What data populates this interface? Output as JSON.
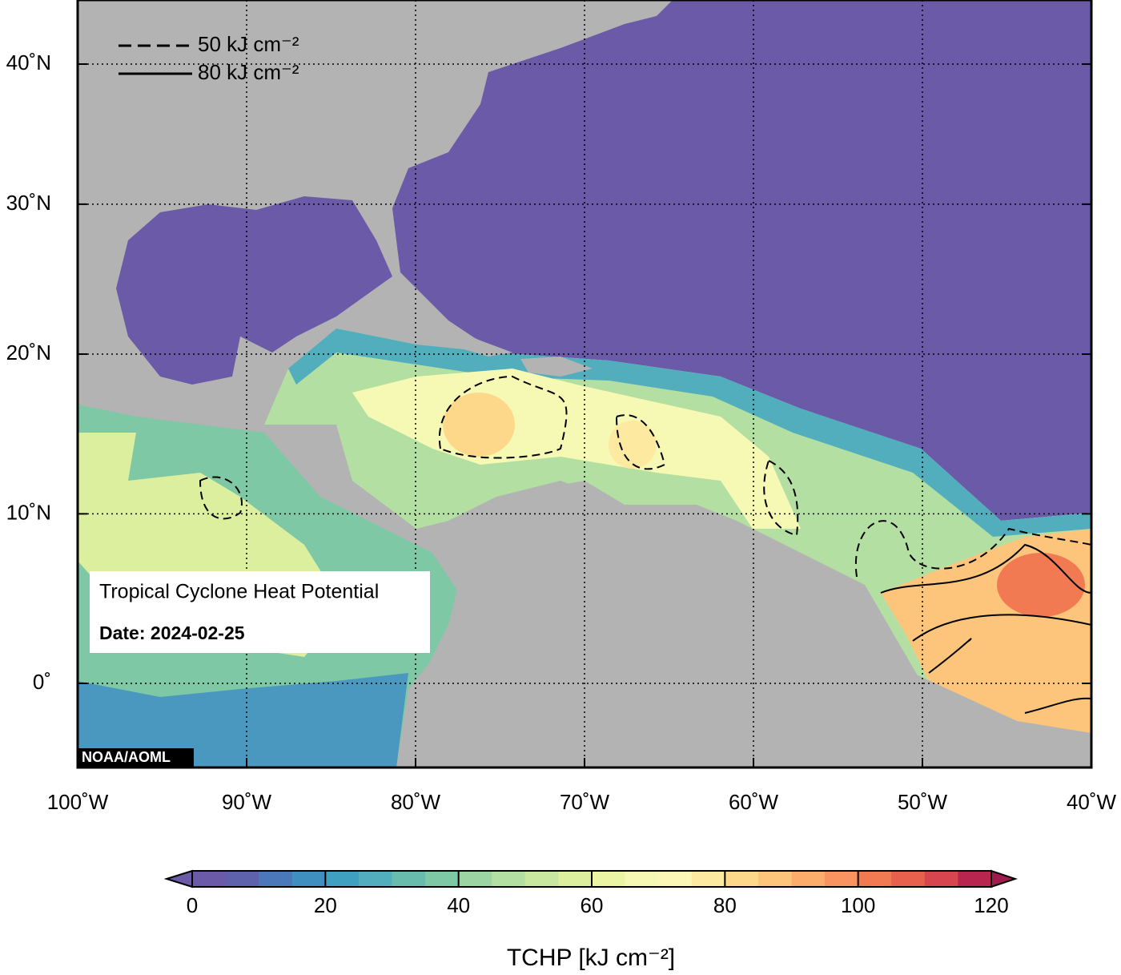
{
  "map": {
    "title": "Tropical Cyclone Heat Potential",
    "date": "Date: 2024-02-25",
    "credit": "NOAA/AOML",
    "xlim": [
      -100,
      -40
    ],
    "ylim": [
      -5,
      44.5
    ],
    "xticks": [
      {
        "value": -100,
        "label": "100˚W"
      },
      {
        "value": -90,
        "label": "90˚W"
      },
      {
        "value": -80,
        "label": "80˚W"
      },
      {
        "value": -70,
        "label": "70˚W"
      },
      {
        "value": -60,
        "label": "60˚W"
      },
      {
        "value": -50,
        "label": "50˚W"
      },
      {
        "value": -40,
        "label": "40˚W"
      }
    ],
    "yticks": [
      {
        "value": 0,
        "label": "0˚"
      },
      {
        "value": 10,
        "label": "10˚N"
      },
      {
        "value": 20,
        "label": "20˚N"
      },
      {
        "value": 30,
        "label": "30˚N"
      },
      {
        "value": 40,
        "label": "40˚N"
      }
    ],
    "grid": true,
    "legend": [
      {
        "label": "50 kJ cm⁻²",
        "style": "dashed"
      },
      {
        "label": "80 kJ cm⁻²",
        "style": "solid"
      }
    ]
  },
  "colorbar": {
    "label": "TCHP [kJ cm⁻²]",
    "bounds": [
      0,
      5,
      10,
      15,
      20,
      25,
      30,
      35,
      40,
      45,
      50,
      55,
      60,
      65,
      70,
      75,
      80,
      85,
      90,
      95,
      100,
      105,
      110,
      115,
      120
    ],
    "colors": [
      "#6a5aa8",
      "#5e62ac",
      "#4a78b8",
      "#3f8fc0",
      "#3fa0c0",
      "#52aebd",
      "#68bcae",
      "#7fc8a6",
      "#9dd4a3",
      "#b4dfa2",
      "#c9e89f",
      "#dcef9e",
      "#ecf5a3",
      "#f6f9b3",
      "#fcf7b6",
      "#fee9a0",
      "#fdd88a",
      "#fdc57b",
      "#fcad6c",
      "#f9935f",
      "#f17a53",
      "#e6604d",
      "#d7464e",
      "#b82650"
    ],
    "under_color": "#6a5aa8",
    "over_color": "#a11a4e",
    "ticks": [
      0,
      20,
      40,
      60,
      80,
      100,
      120
    ]
  }
}
